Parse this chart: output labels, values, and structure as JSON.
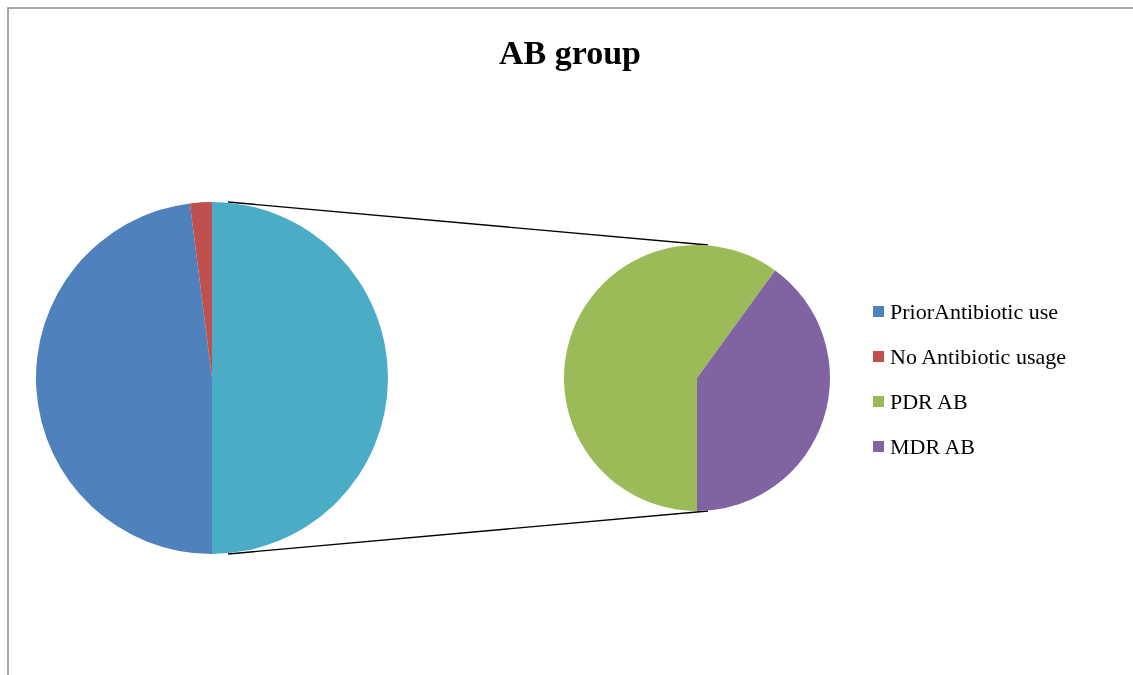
{
  "chart_data": [
    {
      "type": "pie",
      "title": "AB group",
      "categories": [
        "PriorAntibiotic use",
        "No Antibiotic usage",
        null
      ],
      "values": [
        48,
        2,
        50
      ],
      "colors": [
        "#4f81bd",
        "#c0504d",
        "#4bacc6"
      ],
      "legend": "right"
    },
    {
      "type": "pie",
      "categories": [
        "PDR AB",
        "MDR AB"
      ],
      "values": [
        60,
        40
      ],
      "colors": [
        "#9bbb59",
        "#8064a2"
      ],
      "legend": "right"
    }
  ]
}
